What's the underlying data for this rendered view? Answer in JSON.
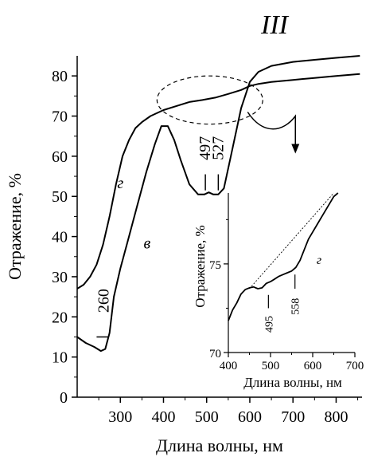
{
  "chart_data": [
    {
      "type": "line",
      "panel_label": "III",
      "xlabel": "Длина волны, нм",
      "ylabel": "Отражение, %",
      "xlim": [
        200,
        860
      ],
      "ylim": [
        0,
        85
      ],
      "x_ticks": [
        300,
        400,
        500,
        600,
        700,
        800
      ],
      "x_tick_labels": [
        "300",
        "400",
        "500",
        "600",
        "700",
        "800"
      ],
      "y_ticks": [
        0,
        10,
        20,
        30,
        40,
        50,
        60,
        70,
        80
      ],
      "y_tick_labels": [
        "0",
        "10",
        "20",
        "30",
        "40",
        "50",
        "60",
        "70",
        "80"
      ],
      "grid": false,
      "series": [
        {
          "name": "г",
          "x": [
            200,
            215,
            230,
            245,
            260,
            275,
            290,
            305,
            320,
            335,
            350,
            370,
            400,
            430,
            460,
            490,
            520,
            550,
            580,
            600,
            620,
            650,
            700,
            750,
            800,
            855
          ],
          "y": [
            27,
            28,
            30,
            33,
            38,
            45,
            53,
            60,
            64,
            67,
            68.5,
            70,
            71.5,
            72.5,
            73.5,
            74,
            74.6,
            75.5,
            76.5,
            77.5,
            78,
            78.5,
            79,
            79.5,
            80,
            80.5
          ]
        },
        {
          "name": "в",
          "x": [
            200,
            220,
            240,
            255,
            265,
            275,
            285,
            300,
            320,
            340,
            360,
            380,
            395,
            410,
            425,
            440,
            460,
            480,
            495,
            505,
            515,
            527,
            540,
            560,
            580,
            600,
            620,
            650,
            700,
            750,
            800,
            855
          ],
          "y": [
            15,
            13.5,
            12.5,
            11.5,
            12,
            16,
            25,
            32,
            40,
            48,
            56,
            63,
            67.5,
            67.5,
            64,
            59,
            53,
            50.5,
            50.5,
            51,
            50.5,
            50.5,
            52,
            62,
            72,
            78.5,
            81,
            82.5,
            83.5,
            84,
            84.5,
            85
          ]
        }
      ],
      "annotations": [
        {
          "text": "260",
          "x": 260,
          "y": 18
        },
        {
          "text": "497",
          "x": 497,
          "y": 57
        },
        {
          "text": "527",
          "x": 527,
          "y": 57
        },
        {
          "text": "г",
          "x": 300,
          "y": 52
        },
        {
          "text": "в",
          "x": 362,
          "y": 37
        }
      ],
      "highlight_ellipse": {
        "x_range": [
          385,
          630
        ],
        "y_range": [
          68,
          80
        ]
      }
    },
    {
      "type": "line",
      "inset": true,
      "xlabel": "Длина волны, нм",
      "ylabel": "Отражение, %",
      "xlim": [
        400,
        700
      ],
      "ylim": [
        70,
        79
      ],
      "x_ticks": [
        400,
        500,
        600,
        700
      ],
      "x_tick_labels": [
        "400",
        "500",
        "600",
        "700"
      ],
      "y_ticks": [
        70,
        75
      ],
      "y_tick_labels": [
        "70",
        "75"
      ],
      "grid": false,
      "series": [
        {
          "name": "г",
          "x": [
            400,
            410,
            420,
            430,
            440,
            450,
            460,
            470,
            480,
            490,
            500,
            510,
            520,
            530,
            540,
            550,
            560,
            570,
            580,
            590,
            600,
            610,
            620,
            630,
            640,
            650,
            660
          ],
          "y": [
            71.8,
            72.4,
            72.8,
            73.3,
            73.55,
            73.65,
            73.7,
            73.6,
            73.65,
            73.9,
            74.0,
            74.15,
            74.3,
            74.4,
            74.5,
            74.6,
            74.8,
            75.2,
            75.8,
            76.4,
            76.8,
            77.2,
            77.6,
            78.0,
            78.4,
            78.8,
            79.0
          ]
        }
      ],
      "tangent_line": {
        "x": [
          450,
          650
        ],
        "y": [
          73.6,
          79.0
        ]
      },
      "annotations": [
        {
          "text": "495",
          "x": 495
        },
        {
          "text": "558",
          "x": 558
        },
        {
          "text": "г",
          "x": 615,
          "y": 75
        }
      ]
    }
  ]
}
